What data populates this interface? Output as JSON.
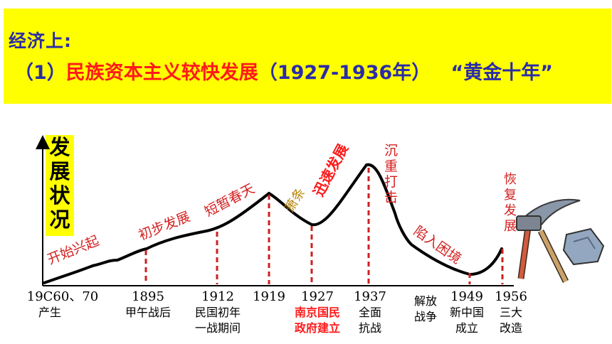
{
  "banner": {
    "heading": "经济上:",
    "num": "（1）",
    "title_red": "民族资本主义较快发展",
    "period": "（1927-1936年）",
    "golden": "“黄金十年”",
    "bg_color": "#ffff00",
    "text_color": "#2b2ba8",
    "accent_color": "#ff1a1a"
  },
  "chart_data": {
    "type": "line",
    "ylabel_chars": [
      "发",
      "展",
      "状",
      "况"
    ],
    "x_ticks": [
      {
        "year": "19C60、70",
        "label": [
          "产生"
        ]
      },
      {
        "year": "1895",
        "label": [
          "甲午战后"
        ]
      },
      {
        "year": "1912",
        "label": [
          "民国初年",
          "一战期间"
        ]
      },
      {
        "year": "1919",
        "label": []
      },
      {
        "year": "1927",
        "label": [
          "南京国民",
          "政府建立"
        ],
        "highlight": true
      },
      {
        "year": "1937",
        "label": [
          "全面",
          "抗战"
        ]
      },
      {
        "year": "",
        "label": [
          "解放",
          "战争"
        ]
      },
      {
        "year": "1949",
        "label": [
          "新中国",
          "成立"
        ]
      },
      {
        "year": "1956",
        "label": [
          "三大",
          "改造"
        ]
      }
    ],
    "phases": [
      {
        "text": "开始兴起",
        "color": "#d42020"
      },
      {
        "text": "初步发展",
        "color": "#d42020"
      },
      {
        "text": "短暂春天",
        "color": "#d42020"
      },
      {
        "text": "萧条",
        "color": "#b8860b"
      },
      {
        "text": "迅速发展",
        "color": "#ff1a1a",
        "bold": true
      },
      {
        "text": "沉重打击",
        "color": "#d42020"
      },
      {
        "text": "陷入困境",
        "color": "#d42020"
      },
      {
        "text": "恢复发展",
        "color": "#d42020"
      }
    ],
    "marker_color": "#cc2020"
  }
}
